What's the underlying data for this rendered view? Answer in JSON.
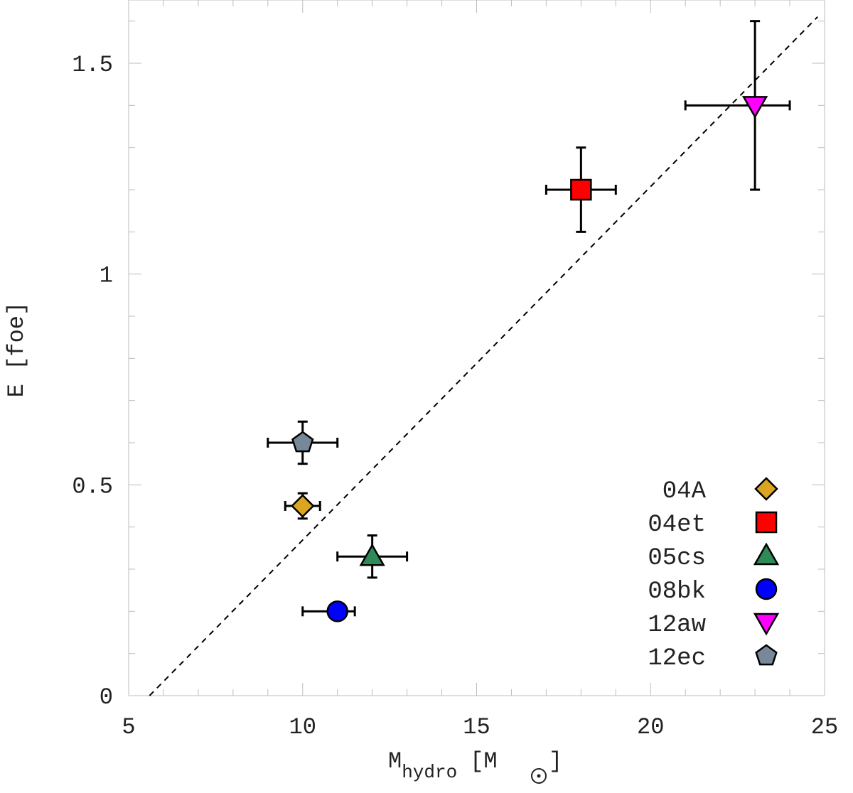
{
  "chart_data": {
    "type": "scatter",
    "title": "",
    "xlabel_main": "M",
    "xlabel_sub": "hydro",
    "xlabel_unit": "[M",
    "xlabel_unit_close": "]",
    "ylabel": "E [foe]",
    "xlim": [
      5,
      25
    ],
    "ylim": [
      0,
      1.65
    ],
    "xticks": [
      5,
      10,
      15,
      20,
      25
    ],
    "xtick_labels": [
      "5",
      "10",
      "15",
      "20",
      "25"
    ],
    "yticks": [
      0,
      0.5,
      1,
      1.5
    ],
    "ytick_labels": [
      "0",
      "0.5",
      "1",
      "1.5"
    ],
    "x_minor_step": 1,
    "y_minor_step": 0.1,
    "grid": false,
    "legend_position": "bottom-right",
    "fit_line": {
      "style": "dashed",
      "points": [
        [
          5.6,
          0
        ],
        [
          24.8,
          1.61
        ]
      ]
    },
    "series": [
      {
        "name": "04A",
        "marker": "diamond",
        "color": "#DAA520",
        "x": 10,
        "y": 0.45,
        "xerr": [
          0.5,
          0.5
        ],
        "yerr": [
          0.03,
          0.03
        ]
      },
      {
        "name": "04et",
        "marker": "square",
        "color": "#FF0000",
        "x": 18,
        "y": 1.2,
        "xerr": [
          1,
          1
        ],
        "yerr": [
          0.1,
          0.1
        ]
      },
      {
        "name": "05cs",
        "marker": "triangle-up",
        "color": "#2E8B57",
        "x": 12,
        "y": 0.33,
        "xerr": [
          1,
          1
        ],
        "yerr": [
          0.05,
          0.05
        ]
      },
      {
        "name": "08bk",
        "marker": "circle",
        "color": "#0000FF",
        "x": 11,
        "y": 0.2,
        "xerr": [
          1,
          0.5
        ],
        "yerr": [
          0,
          0
        ]
      },
      {
        "name": "12aw",
        "marker": "triangle-down",
        "color": "#FF00FF",
        "x": 23,
        "y": 1.4,
        "xerr": [
          2,
          1
        ],
        "yerr": [
          0.2,
          0.2
        ]
      },
      {
        "name": "12ec",
        "marker": "pentagon",
        "color": "#778899",
        "x": 10,
        "y": 0.6,
        "xerr": [
          1,
          1
        ],
        "yerr": [
          0.05,
          0.05
        ]
      }
    ]
  }
}
